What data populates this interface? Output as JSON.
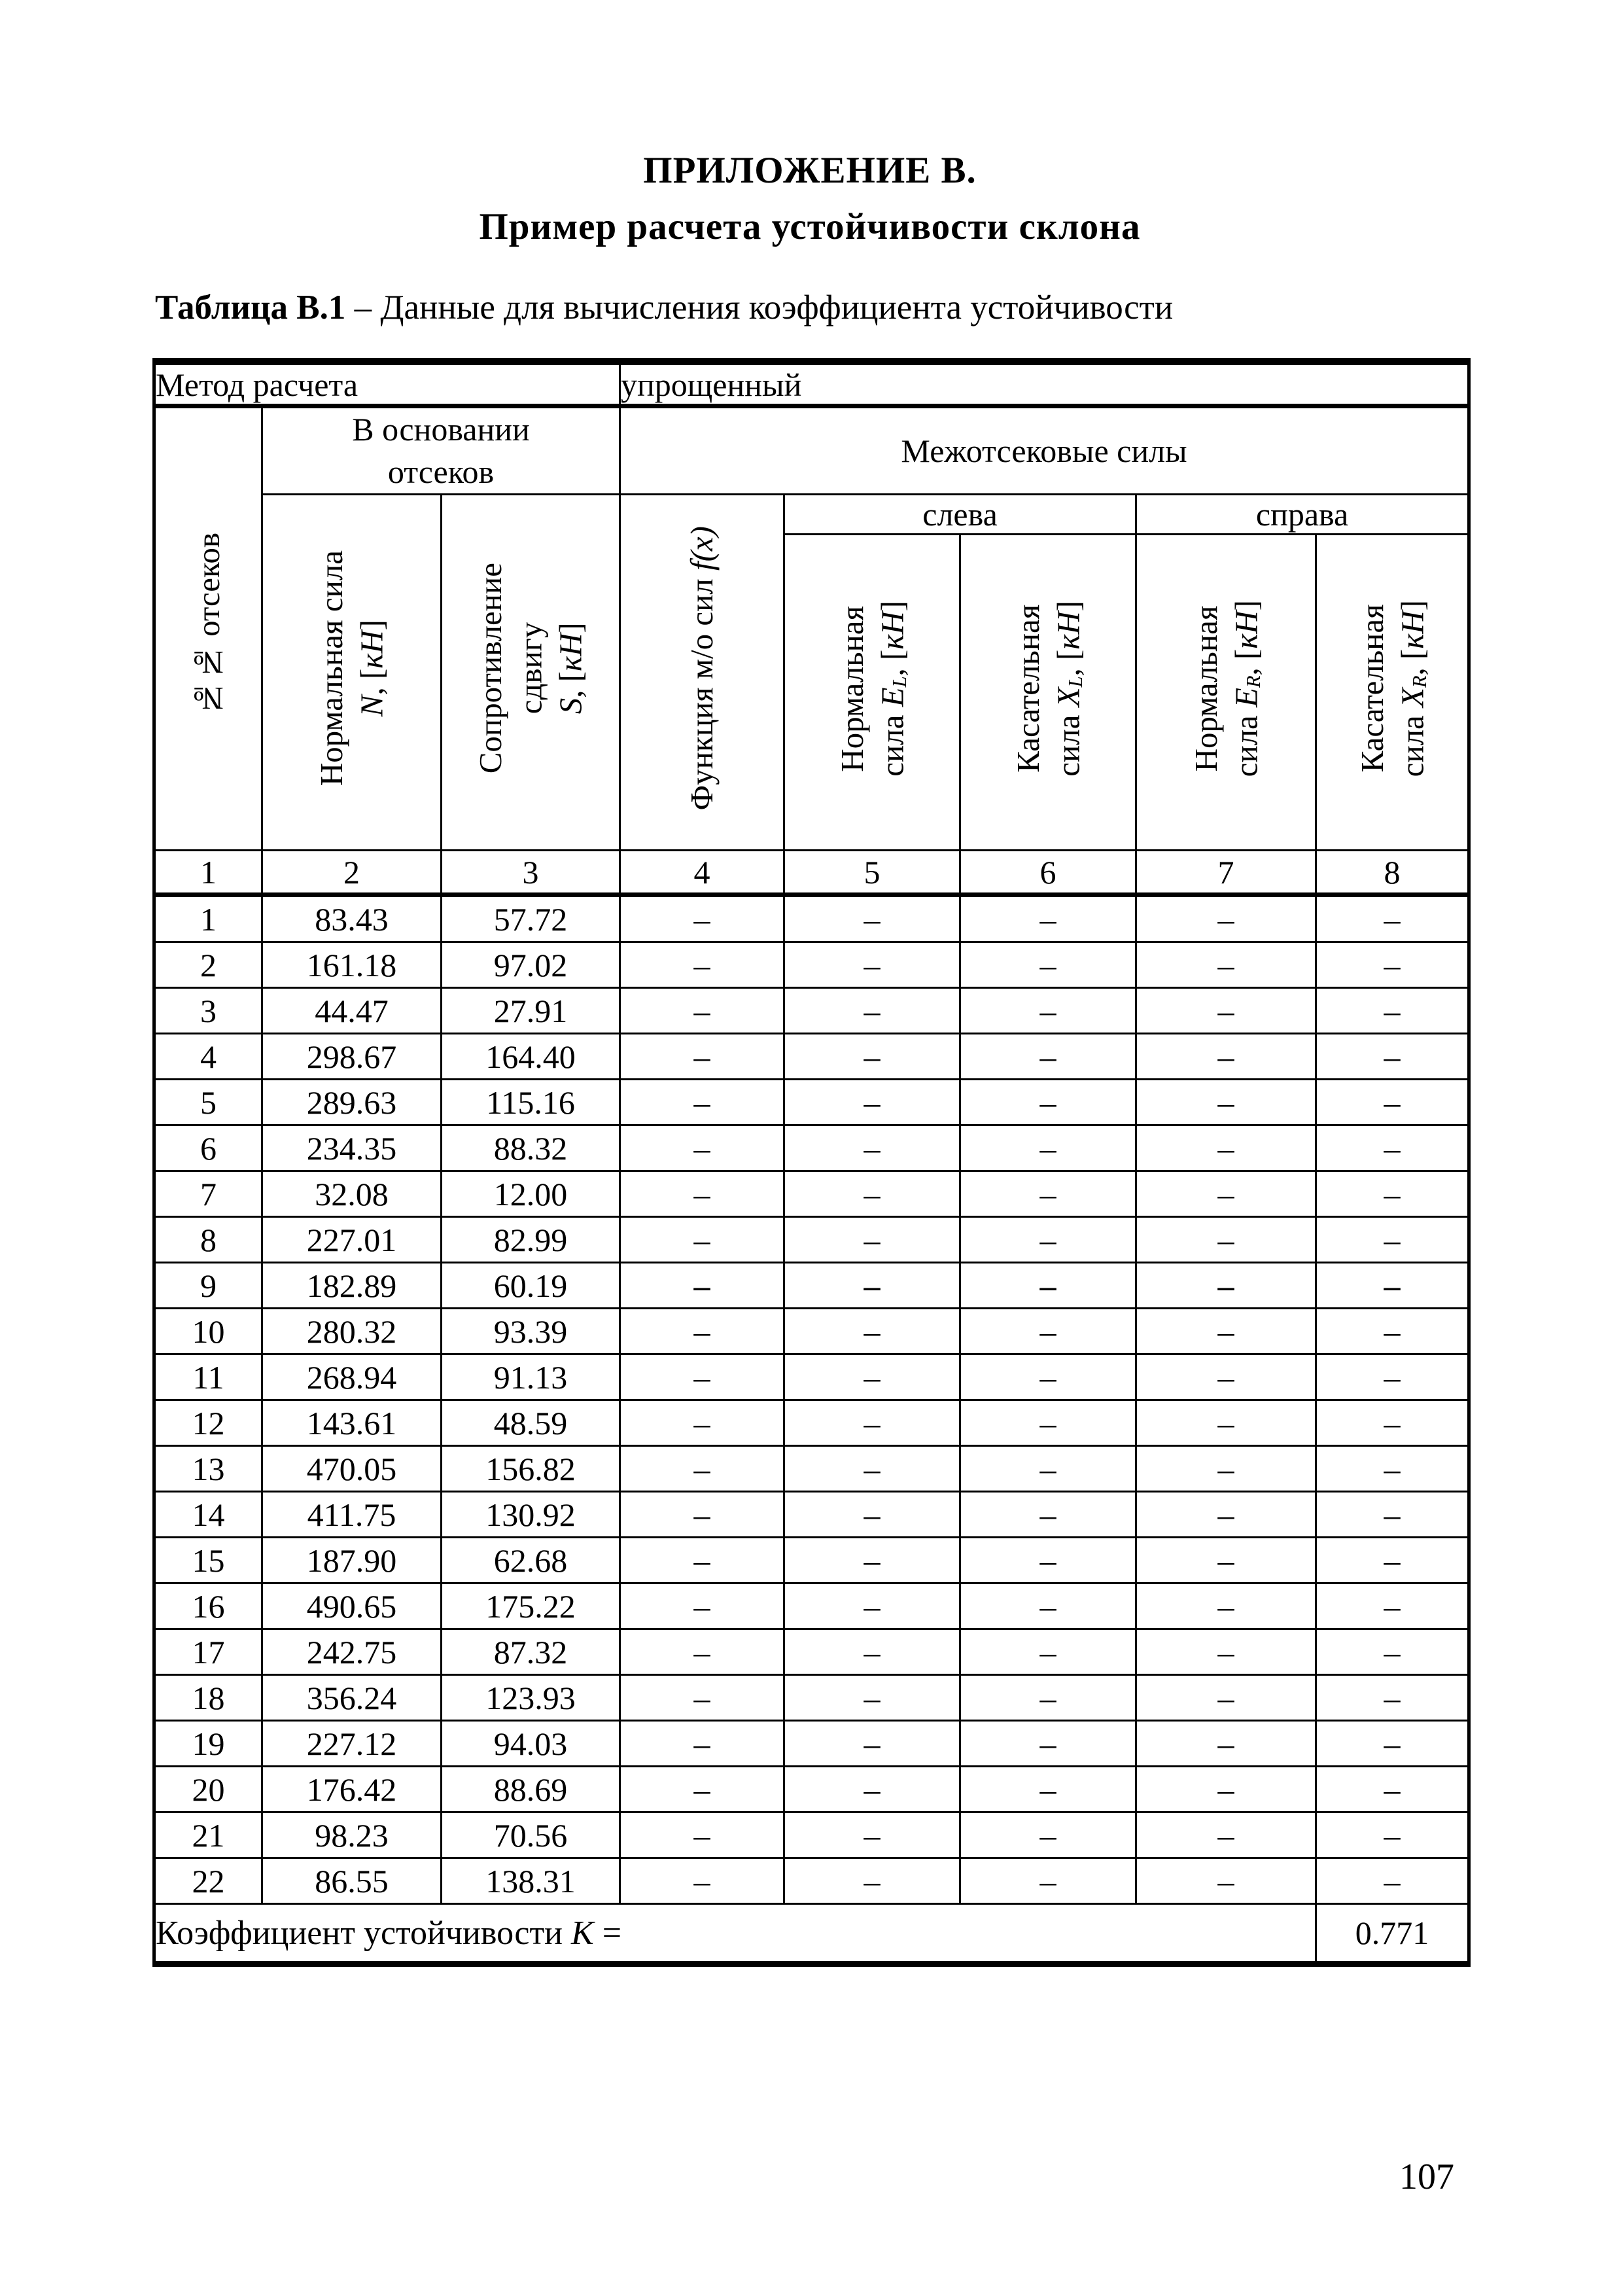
{
  "page": {
    "title_line1": "ПРИЛОЖЕНИЕ В.",
    "title_line2": "Пример расчета устойчивости склона",
    "caption_bold": "Таблица В.1",
    "caption_rest": " – Данные для вычисления коэффициента устойчивости",
    "page_number": "107"
  },
  "table": {
    "method_label": "Метод расчета",
    "method_value": "упрощенный",
    "headers": {
      "col1": "№№ отсеков",
      "base_group": "В основании\nотсеков",
      "inter_group": "Межотсековые силы",
      "left_group": "слева",
      "right_group": "справа",
      "col2": {
        "line1": "Нормальная сила",
        "sym": "N",
        "mid": ", [",
        "unit": "кН",
        "post": "]"
      },
      "col3": {
        "line1": "Сопротивление",
        "line2": "сдвигу",
        "sym": "S",
        "mid": ", [",
        "unit": "кН",
        "post": "]"
      },
      "col4": {
        "pre": "Функция м/о сил ",
        "fx": "f(x)"
      },
      "col5": {
        "line1": "Нормальная",
        "pre": "сила ",
        "sym": "E",
        "sub": "L",
        "mid": ", [",
        "unit": "кН",
        "post": "]"
      },
      "col6": {
        "line1": "Касательная",
        "pre": "сила ",
        "sym": "X",
        "sub": "L",
        "mid": ", [",
        "unit": "кН",
        "post": "]"
      },
      "col7": {
        "line1": "Нормальная",
        "pre": "сила ",
        "sym": "E",
        "sub": "R",
        "mid": ", [",
        "unit": "кН",
        "post": "]"
      },
      "col8": {
        "line1": "Касательная",
        "pre": "сила ",
        "sym": "X",
        "sub": "R",
        "mid": ", [",
        "unit": "кН",
        "post": "]"
      }
    },
    "column_numbers": [
      "1",
      "2",
      "3",
      "4",
      "5",
      "6",
      "7",
      "8"
    ],
    "dash": "–",
    "bold_dash_rows": [
      9
    ],
    "rows": [
      {
        "n": "1",
        "N": "83.43",
        "S": "57.72"
      },
      {
        "n": "2",
        "N": "161.18",
        "S": "97.02"
      },
      {
        "n": "3",
        "N": "44.47",
        "S": "27.91"
      },
      {
        "n": "4",
        "N": "298.67",
        "S": "164.40"
      },
      {
        "n": "5",
        "N": "289.63",
        "S": "115.16"
      },
      {
        "n": "6",
        "N": "234.35",
        "S": "88.32"
      },
      {
        "n": "7",
        "N": "32.08",
        "S": "12.00"
      },
      {
        "n": "8",
        "N": "227.01",
        "S": "82.99"
      },
      {
        "n": "9",
        "N": "182.89",
        "S": "60.19"
      },
      {
        "n": "10",
        "N": "280.32",
        "S": "93.39"
      },
      {
        "n": "11",
        "N": "268.94",
        "S": "91.13"
      },
      {
        "n": "12",
        "N": "143.61",
        "S": "48.59"
      },
      {
        "n": "13",
        "N": "470.05",
        "S": "156.82"
      },
      {
        "n": "14",
        "N": "411.75",
        "S": "130.92"
      },
      {
        "n": "15",
        "N": "187.90",
        "S": "62.68"
      },
      {
        "n": "16",
        "N": "490.65",
        "S": "175.22"
      },
      {
        "n": "17",
        "N": "242.75",
        "S": "87.32"
      },
      {
        "n": "18",
        "N": "356.24",
        "S": "123.93"
      },
      {
        "n": "19",
        "N": "227.12",
        "S": "94.03"
      },
      {
        "n": "20",
        "N": "176.42",
        "S": "88.69"
      },
      {
        "n": "21",
        "N": "98.23",
        "S": "70.56"
      },
      {
        "n": "22",
        "N": "86.55",
        "S": "138.31"
      }
    ],
    "footer": {
      "label": "Коэффициент устойчивости ",
      "k": "K",
      "eq": "=",
      "value": "0.771"
    }
  }
}
